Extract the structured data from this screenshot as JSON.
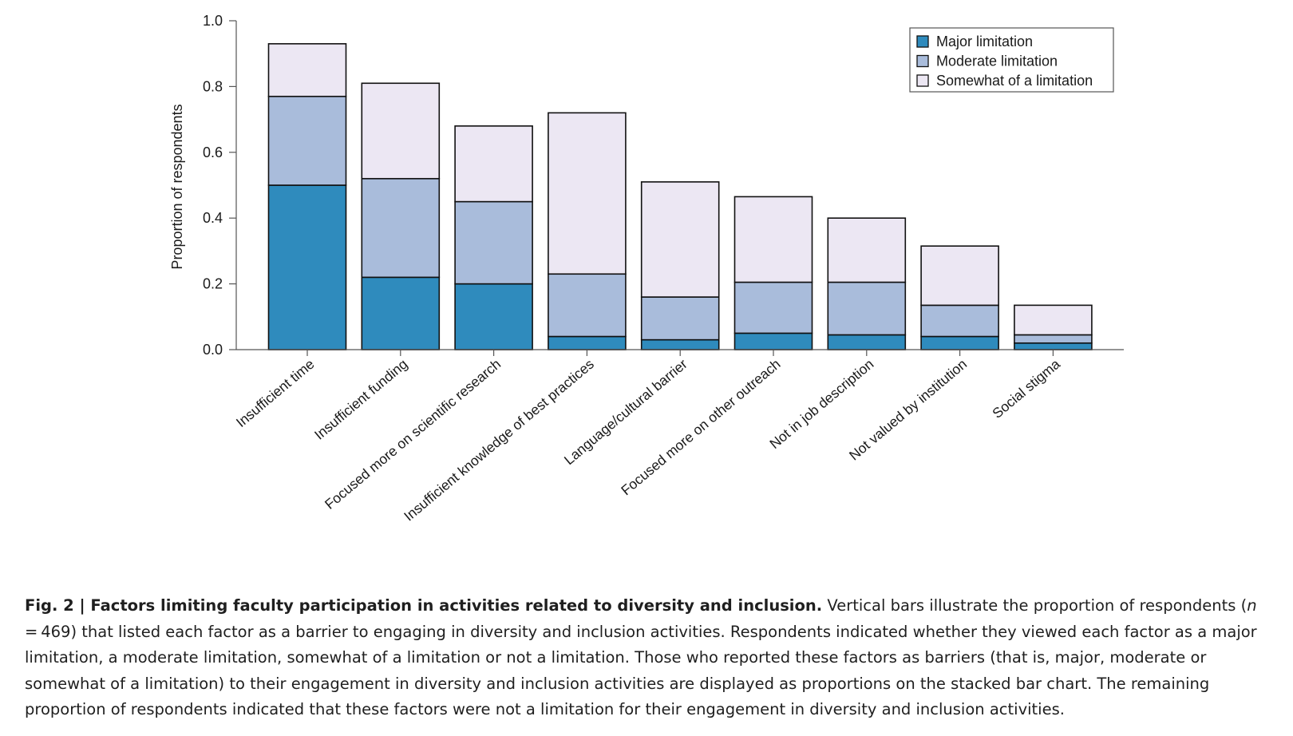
{
  "chart_data": {
    "type": "bar",
    "stacked": true,
    "ylabel": "Proportion of respondents",
    "xlabel": "",
    "ylim": [
      0,
      1.0
    ],
    "yticks": [
      "0.0",
      "0.2",
      "0.4",
      "0.6",
      "0.8",
      "1.0"
    ],
    "grid": false,
    "legend_position": "top-right",
    "categories": [
      "Insufficient time",
      "Insufficient funding",
      "Focused more on scientific research",
      "Insufficient knowledge of best practices",
      "Language/cultural barrier",
      "Focused more on other outreach",
      "Not in job description",
      "Not valued by institution",
      "Social stigma"
    ],
    "series": [
      {
        "name": "Major limitation",
        "color": "#2f8bbd",
        "values": [
          0.5,
          0.22,
          0.2,
          0.04,
          0.03,
          0.05,
          0.045,
          0.04,
          0.02
        ]
      },
      {
        "name": "Moderate limitation",
        "color": "#a9bcdb",
        "values": [
          0.27,
          0.3,
          0.25,
          0.19,
          0.13,
          0.155,
          0.16,
          0.095,
          0.025
        ]
      },
      {
        "name": "Somewhat of a limitation",
        "color": "#ece7f3",
        "values": [
          0.16,
          0.29,
          0.23,
          0.49,
          0.35,
          0.26,
          0.195,
          0.18,
          0.09
        ]
      }
    ]
  },
  "caption": {
    "bold": "Fig. 2 | Factors limiting faculty participation in activities related to diversity and inclusion.",
    "text_before_n": " Vertical bars illustrate the proportion of respondents (",
    "n_symbol": "n",
    "text_after_n": " = 469) that listed each factor as a barrier to engaging in diversity and inclusion activities. Respondents indicated whether they viewed each factor as a major limitation, a moderate limitation, somewhat of a limitation or not a limitation. Those who reported these factors as barriers (that is, major, moderate or somewhat of a limitation) to their engagement in diversity and inclusion activities are displayed as proportions on the stacked bar chart. The remaining proportion of respondents indicated that these factors were not a limitation for their engagement in diversity and inclusion activities."
  }
}
